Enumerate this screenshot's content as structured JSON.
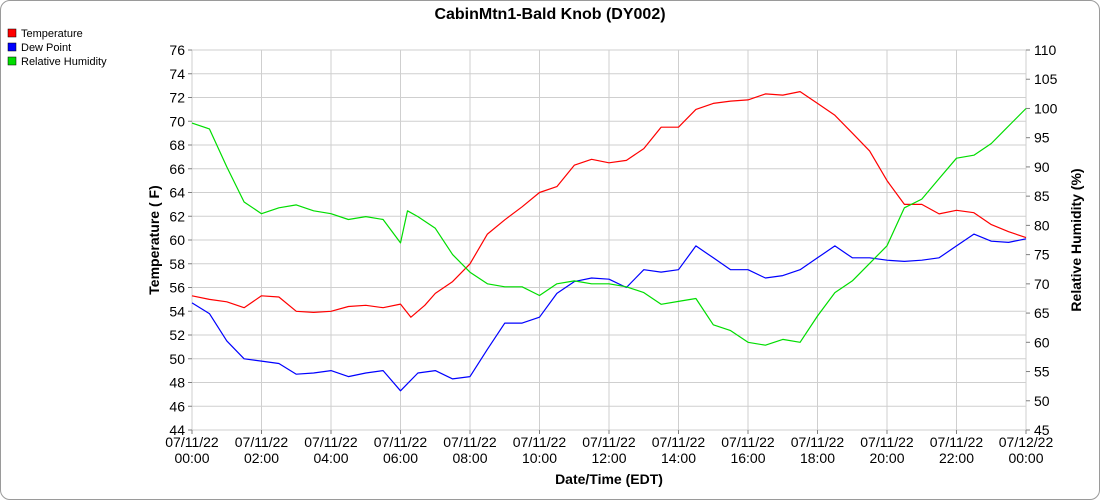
{
  "chart_data": {
    "type": "line",
    "title": "CabinMtn1-Bald Knob (DY002)",
    "xlabel": "Date/Time (EDT)",
    "ylabel": "Temperature ( F)",
    "y2label": "Relative Humidity (%)",
    "xlim": [
      0,
      24
    ],
    "ylim": [
      44,
      76
    ],
    "y2lim": [
      45,
      110
    ],
    "grid": true,
    "legend_position": "top-left",
    "x_ticks": [
      {
        "value": 0,
        "date": "07/11/22",
        "time": "00:00"
      },
      {
        "value": 2,
        "date": "07/11/22",
        "time": "02:00"
      },
      {
        "value": 4,
        "date": "07/11/22",
        "time": "04:00"
      },
      {
        "value": 6,
        "date": "07/11/22",
        "time": "06:00"
      },
      {
        "value": 8,
        "date": "07/11/22",
        "time": "08:00"
      },
      {
        "value": 10,
        "date": "07/11/22",
        "time": "10:00"
      },
      {
        "value": 12,
        "date": "07/11/22",
        "time": "12:00"
      },
      {
        "value": 14,
        "date": "07/11/22",
        "time": "14:00"
      },
      {
        "value": 16,
        "date": "07/11/22",
        "time": "16:00"
      },
      {
        "value": 18,
        "date": "07/11/22",
        "time": "18:00"
      },
      {
        "value": 20,
        "date": "07/11/22",
        "time": "20:00"
      },
      {
        "value": 22,
        "date": "07/11/22",
        "time": "22:00"
      },
      {
        "value": 24,
        "date": "07/12/22",
        "time": "00:00"
      }
    ],
    "y_ticks": [
      44,
      46,
      48,
      50,
      52,
      54,
      56,
      58,
      60,
      62,
      64,
      66,
      68,
      70,
      72,
      74,
      76
    ],
    "y2_ticks": [
      45,
      50,
      55,
      60,
      65,
      70,
      75,
      80,
      85,
      90,
      95,
      100,
      105,
      110
    ],
    "series": [
      {
        "name": "Temperature",
        "color": "#ff0000",
        "axis": "left",
        "points": [
          [
            0,
            55.3
          ],
          [
            0.5,
            55.0
          ],
          [
            1,
            54.8
          ],
          [
            1.5,
            54.3
          ],
          [
            2,
            55.3
          ],
          [
            2.5,
            55.2
          ],
          [
            3,
            54.0
          ],
          [
            3.5,
            53.9
          ],
          [
            4,
            54.0
          ],
          [
            4.5,
            54.4
          ],
          [
            5,
            54.5
          ],
          [
            5.5,
            54.3
          ],
          [
            6,
            54.6
          ],
          [
            6.3,
            53.5
          ],
          [
            6.7,
            54.5
          ],
          [
            7,
            55.5
          ],
          [
            7.5,
            56.5
          ],
          [
            8,
            58.0
          ],
          [
            8.5,
            60.5
          ],
          [
            9,
            61.7
          ],
          [
            9.5,
            62.8
          ],
          [
            10,
            64.0
          ],
          [
            10.5,
            64.5
          ],
          [
            11,
            66.3
          ],
          [
            11.5,
            66.8
          ],
          [
            12,
            66.5
          ],
          [
            12.5,
            66.7
          ],
          [
            13,
            67.7
          ],
          [
            13.5,
            69.5
          ],
          [
            14,
            69.5
          ],
          [
            14.5,
            71.0
          ],
          [
            15,
            71.5
          ],
          [
            15.5,
            71.7
          ],
          [
            16,
            71.8
          ],
          [
            16.5,
            72.3
          ],
          [
            17,
            72.2
          ],
          [
            17.5,
            72.5
          ],
          [
            18,
            71.5
          ],
          [
            18.5,
            70.5
          ],
          [
            19,
            69.0
          ],
          [
            19.5,
            67.5
          ],
          [
            20,
            65.0
          ],
          [
            20.5,
            63.0
          ],
          [
            21,
            63.0
          ],
          [
            21.5,
            62.2
          ],
          [
            22,
            62.5
          ],
          [
            22.5,
            62.3
          ],
          [
            23,
            61.3
          ],
          [
            23.5,
            60.7
          ],
          [
            24,
            60.2
          ]
        ]
      },
      {
        "name": "Dew Point",
        "color": "#0000ff",
        "axis": "left",
        "points": [
          [
            0,
            54.7
          ],
          [
            0.5,
            53.8
          ],
          [
            1,
            51.5
          ],
          [
            1.5,
            50.0
          ],
          [
            2,
            49.8
          ],
          [
            2.5,
            49.6
          ],
          [
            3,
            48.7
          ],
          [
            3.5,
            48.8
          ],
          [
            4,
            49.0
          ],
          [
            4.5,
            48.5
          ],
          [
            5,
            48.8
          ],
          [
            5.5,
            49.0
          ],
          [
            6,
            47.3
          ],
          [
            6.5,
            48.8
          ],
          [
            7,
            49.0
          ],
          [
            7.5,
            48.3
          ],
          [
            8,
            48.5
          ],
          [
            8.5,
            50.8
          ],
          [
            9,
            53.0
          ],
          [
            9.5,
            53.0
          ],
          [
            10,
            53.5
          ],
          [
            10.5,
            55.5
          ],
          [
            11,
            56.5
          ],
          [
            11.5,
            56.8
          ],
          [
            12,
            56.7
          ],
          [
            12.5,
            56.0
          ],
          [
            13,
            57.5
          ],
          [
            13.5,
            57.3
          ],
          [
            14,
            57.5
          ],
          [
            14.5,
            59.5
          ],
          [
            15,
            58.5
          ],
          [
            15.5,
            57.5
          ],
          [
            16,
            57.5
          ],
          [
            16.5,
            56.8
          ],
          [
            17,
            57.0
          ],
          [
            17.5,
            57.5
          ],
          [
            18,
            58.5
          ],
          [
            18.5,
            59.5
          ],
          [
            19,
            58.5
          ],
          [
            19.5,
            58.5
          ],
          [
            20,
            58.3
          ],
          [
            20.5,
            58.2
          ],
          [
            21,
            58.3
          ],
          [
            21.5,
            58.5
          ],
          [
            22,
            59.5
          ],
          [
            22.5,
            60.5
          ],
          [
            23,
            59.9
          ],
          [
            23.5,
            59.8
          ],
          [
            24,
            60.1
          ]
        ]
      },
      {
        "name": "Relative Humidity",
        "color": "#00dd00",
        "axis": "right",
        "points": [
          [
            0,
            97.5
          ],
          [
            0.5,
            96.5
          ],
          [
            1,
            90.0
          ],
          [
            1.5,
            84.0
          ],
          [
            2,
            82.0
          ],
          [
            2.5,
            83.0
          ],
          [
            3,
            83.5
          ],
          [
            3.5,
            82.5
          ],
          [
            4,
            82.0
          ],
          [
            4.5,
            81.0
          ],
          [
            5,
            81.5
          ],
          [
            5.5,
            81.0
          ],
          [
            6,
            77.0
          ],
          [
            6.2,
            82.5
          ],
          [
            6.5,
            81.5
          ],
          [
            7,
            79.5
          ],
          [
            7.5,
            75.0
          ],
          [
            8,
            72.0
          ],
          [
            8.5,
            70.0
          ],
          [
            9,
            69.5
          ],
          [
            9.5,
            69.5
          ],
          [
            10,
            68.0
          ],
          [
            10.5,
            70.0
          ],
          [
            11,
            70.5
          ],
          [
            11.5,
            70.0
          ],
          [
            12,
            70.0
          ],
          [
            12.5,
            69.5
          ],
          [
            13,
            68.5
          ],
          [
            13.5,
            66.5
          ],
          [
            14,
            67.0
          ],
          [
            14.5,
            67.5
          ],
          [
            15,
            63.0
          ],
          [
            15.5,
            62.0
          ],
          [
            16,
            60.0
          ],
          [
            16.5,
            59.5
          ],
          [
            17,
            60.5
          ],
          [
            17.5,
            60.0
          ],
          [
            18,
            64.5
          ],
          [
            18.5,
            68.5
          ],
          [
            19,
            70.5
          ],
          [
            19.5,
            73.5
          ],
          [
            20,
            76.5
          ],
          [
            20.5,
            83.0
          ],
          [
            21,
            84.5
          ],
          [
            21.5,
            88.0
          ],
          [
            22,
            91.5
          ],
          [
            22.5,
            92.0
          ],
          [
            23,
            94.0
          ],
          [
            23.5,
            97.0
          ],
          [
            24,
            100.0
          ]
        ]
      }
    ]
  }
}
